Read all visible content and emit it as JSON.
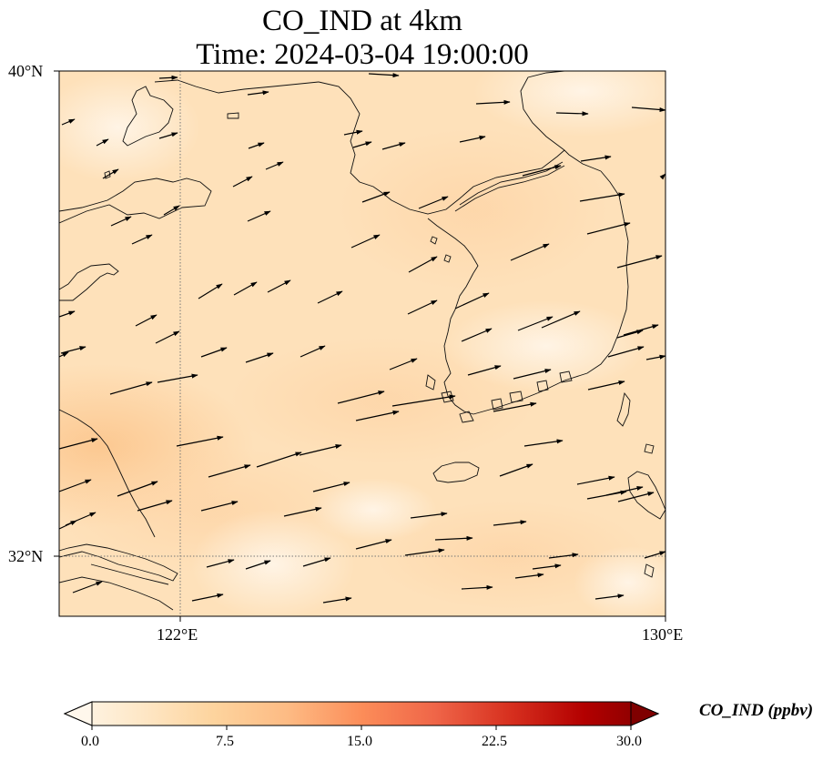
{
  "title_line1": "CO_IND at 4km",
  "title_line2": "Time: 2024-03-04 19:00:00",
  "map": {
    "lat_ticks": [
      "40°N",
      "32°N"
    ],
    "lon_ticks": [
      "122°E",
      "130°E"
    ],
    "lon_range": [
      120,
      130
    ],
    "lat_range": [
      31,
      40
    ],
    "field_colormap": "OrRd",
    "field_range_ppbv": [
      0,
      30
    ],
    "typical_field_value_ppbv": 5,
    "gridlines": "dotted",
    "vector_overlay": "wind arrows (mostly west-southwesterly)"
  },
  "colorbar": {
    "label": "CO_IND (ppbv)",
    "ticks": [
      "0.0",
      "7.5",
      "15.0",
      "22.5",
      "30.0"
    ],
    "extend": "both",
    "colors": [
      "#fff7ec",
      "#fee8c8",
      "#fdd49e",
      "#fdbb84",
      "#fc8d59",
      "#ef6548",
      "#d7301f",
      "#b30000",
      "#7f0000"
    ]
  }
}
